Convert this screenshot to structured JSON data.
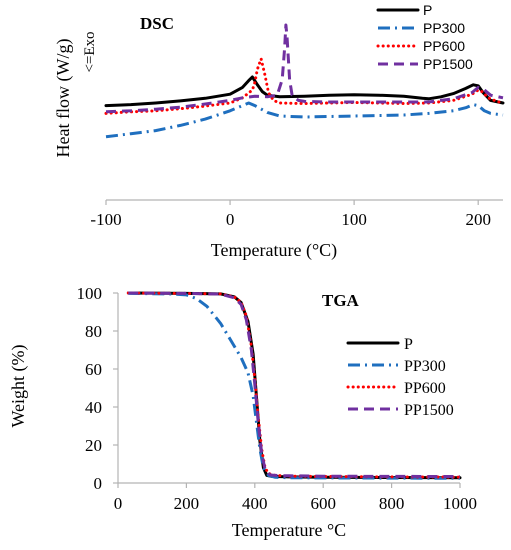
{
  "colors": {
    "P": "#000000",
    "PP300": "#1f6fbf",
    "PP600": "#ff0000",
    "PP1500": "#7030a0",
    "axis": "#b3b3b3"
  },
  "line_styles": {
    "P": "solid",
    "PP300": "dash-dot",
    "PP600": "dotted",
    "PP1500": "dashed"
  },
  "chart_data": [
    {
      "type": "line",
      "title": "DSC",
      "xlabel": "Temperature (°C)",
      "ylabel": "Heat flow (W/g)",
      "y_annotation": "<=Exo",
      "xlim": [
        -100,
        220
      ],
      "xticks": [
        -100,
        0,
        100,
        200
      ],
      "y_tick_labels": false,
      "legend": "top-right",
      "grid": false,
      "series": [
        {
          "name": "P",
          "x": [
            -100,
            -80,
            -60,
            -40,
            -20,
            0,
            10,
            15,
            18,
            22,
            26,
            30,
            40,
            60,
            80,
            100,
            120,
            140,
            155,
            160,
            170,
            180,
            190,
            196,
            200,
            204,
            210,
            220
          ],
          "y": [
            0.2,
            0.22,
            0.25,
            0.29,
            0.34,
            0.42,
            0.55,
            0.68,
            0.75,
            0.6,
            0.47,
            0.4,
            0.37,
            0.38,
            0.4,
            0.41,
            0.4,
            0.38,
            0.34,
            0.33,
            0.37,
            0.43,
            0.53,
            0.6,
            0.58,
            0.45,
            0.3,
            0.25
          ]
        },
        {
          "name": "PP300",
          "x": [
            -100,
            -80,
            -60,
            -40,
            -20,
            0,
            10,
            15,
            20,
            30,
            40,
            60,
            80,
            100,
            120,
            140,
            160,
            180,
            190,
            196,
            200,
            205,
            210,
            220
          ],
          "y": [
            -0.4,
            -0.34,
            -0.28,
            -0.18,
            -0.06,
            0.1,
            0.2,
            0.25,
            0.2,
            0.07,
            0.0,
            -0.02,
            -0.01,
            0.0,
            0.01,
            0.02,
            0.05,
            0.1,
            0.16,
            0.22,
            0.2,
            0.1,
            0.05,
            0.02
          ]
        },
        {
          "name": "PP600",
          "x": [
            -100,
            -80,
            -60,
            -40,
            -20,
            0,
            10,
            18,
            20,
            22,
            25,
            28,
            31,
            35,
            40,
            60,
            80,
            100,
            120,
            140,
            160,
            180,
            195,
            200,
            203,
            208,
            215,
            220
          ],
          "y": [
            0.05,
            0.08,
            0.1,
            0.14,
            0.19,
            0.25,
            0.35,
            0.5,
            0.65,
            0.9,
            1.1,
            0.8,
            0.45,
            0.3,
            0.25,
            0.24,
            0.25,
            0.26,
            0.25,
            0.24,
            0.25,
            0.3,
            0.42,
            0.5,
            0.47,
            0.35,
            0.28,
            0.25
          ]
        },
        {
          "name": "PP1500",
          "x": [
            -100,
            -80,
            -60,
            -40,
            -20,
            0,
            10,
            20,
            30,
            38,
            42,
            44,
            45,
            46,
            48,
            50,
            55,
            60,
            80,
            100,
            120,
            140,
            160,
            180,
            195,
            200,
            205,
            210,
            220
          ],
          "y": [
            0.08,
            0.1,
            0.13,
            0.17,
            0.23,
            0.3,
            0.35,
            0.38,
            0.37,
            0.4,
            0.7,
            1.3,
            1.75,
            1.5,
            0.7,
            0.4,
            0.3,
            0.28,
            0.27,
            0.27,
            0.27,
            0.27,
            0.27,
            0.33,
            0.45,
            0.55,
            0.5,
            0.4,
            0.35
          ]
        }
      ]
    },
    {
      "type": "line",
      "title": "TGA",
      "xlabel": "Temperature °C",
      "ylabel": "Weight (%)",
      "xlim": [
        0,
        1000
      ],
      "ylim": [
        0,
        100
      ],
      "xticks": [
        0,
        200,
        400,
        600,
        800,
        1000
      ],
      "yticks": [
        0,
        20,
        40,
        60,
        80,
        100
      ],
      "legend": "right",
      "grid": false,
      "series": [
        {
          "name": "P",
          "x": [
            30,
            200,
            300,
            340,
            360,
            380,
            395,
            405,
            415,
            425,
            435,
            450,
            500,
            600,
            800,
            1000
          ],
          "y": [
            100,
            99.8,
            99.5,
            98,
            95,
            85,
            68,
            45,
            22,
            8,
            4,
            3.5,
            3.2,
            3,
            2.9,
            2.8
          ]
        },
        {
          "name": "PP300",
          "x": [
            30,
            150,
            200,
            230,
            260,
            300,
            330,
            360,
            380,
            395,
            405,
            415,
            425,
            440,
            460,
            500,
            600,
            800,
            1000
          ],
          "y": [
            99.8,
            99.5,
            99,
            97,
            93,
            84,
            75,
            66,
            58,
            46,
            32,
            18,
            8,
            4,
            3,
            2.8,
            2.7,
            2.6,
            2.5
          ]
        },
        {
          "name": "PP600",
          "x": [
            30,
            200,
            300,
            340,
            360,
            375,
            390,
            400,
            410,
            420,
            430,
            440,
            460,
            500,
            600,
            800,
            1000
          ],
          "y": [
            100,
            99.8,
            99.5,
            98,
            95,
            88,
            72,
            55,
            35,
            18,
            8,
            5,
            4,
            3.6,
            3.4,
            3.2,
            3.1
          ]
        },
        {
          "name": "PP1500",
          "x": [
            30,
            200,
            300,
            340,
            360,
            375,
            390,
            400,
            410,
            420,
            430,
            445,
            470,
            500,
            600,
            800,
            1000
          ],
          "y": [
            100,
            99.8,
            99.4,
            97.5,
            94,
            86,
            70,
            52,
            32,
            16,
            7,
            4.2,
            3.9,
            3.8,
            3.6,
            3.5,
            3.4
          ]
        }
      ]
    }
  ]
}
